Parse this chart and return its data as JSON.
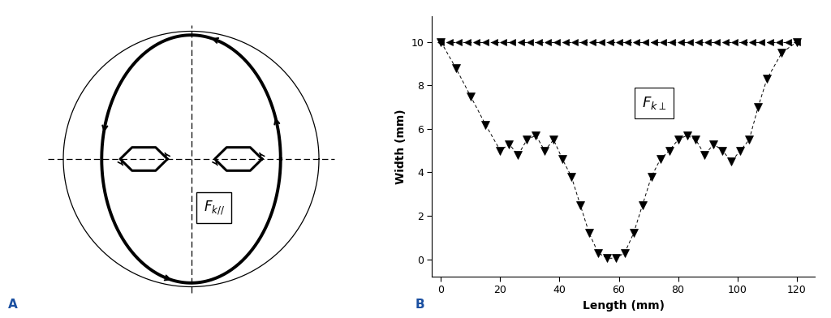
{
  "fig_width": 10.24,
  "fig_height": 3.92,
  "bg_color": "#ffffff",
  "panel_A_label": "A",
  "panel_B_label": "B",
  "label_Fkll": "$F_{k//}$",
  "label_Fkperp": "$F_{k\\perp}$",
  "xlabel_B": "Length (mm)",
  "ylabel_B": "Width (mm)",
  "xlim_B": [
    -3,
    126
  ],
  "ylim_B": [
    -0.8,
    11.2
  ],
  "xticks_B": [
    0,
    20,
    40,
    60,
    80,
    100,
    120
  ],
  "yticks_B": [
    0,
    2,
    4,
    6,
    8,
    10
  ],
  "line1_x": [
    0,
    3,
    6,
    9,
    12,
    15,
    18,
    21,
    24,
    27,
    30,
    33,
    36,
    39,
    42,
    45,
    48,
    51,
    54,
    57,
    60,
    63,
    66,
    69,
    72,
    75,
    78,
    81,
    84,
    87,
    90,
    93,
    96,
    99,
    102,
    105,
    108,
    111,
    114,
    117,
    120
  ],
  "line1_y": [
    10,
    10,
    10,
    10,
    10,
    10,
    10,
    10,
    10,
    10,
    10,
    10,
    10,
    10,
    10,
    10,
    10,
    10,
    10,
    10,
    10,
    10,
    10,
    10,
    10,
    10,
    10,
    10,
    10,
    10,
    10,
    10,
    10,
    10,
    10,
    10,
    10,
    10,
    10,
    10,
    10
  ],
  "line2_x": [
    0,
    5,
    10,
    15,
    20,
    23,
    26,
    29,
    32,
    35,
    38,
    41,
    44,
    47,
    50,
    53,
    56,
    59,
    62,
    65,
    68,
    71,
    74,
    77,
    80,
    83,
    86,
    89,
    92,
    95,
    98,
    101,
    104,
    107,
    110,
    115,
    120
  ],
  "line2_y": [
    10,
    8.8,
    7.5,
    6.2,
    5.0,
    5.3,
    4.8,
    5.5,
    5.7,
    5.0,
    5.5,
    4.6,
    3.8,
    2.5,
    1.2,
    0.3,
    0.05,
    0.05,
    0.3,
    1.2,
    2.5,
    3.8,
    4.6,
    5.0,
    5.5,
    5.7,
    5.5,
    4.8,
    5.3,
    5.0,
    4.5,
    5.0,
    5.5,
    7.0,
    8.3,
    9.5,
    10
  ]
}
